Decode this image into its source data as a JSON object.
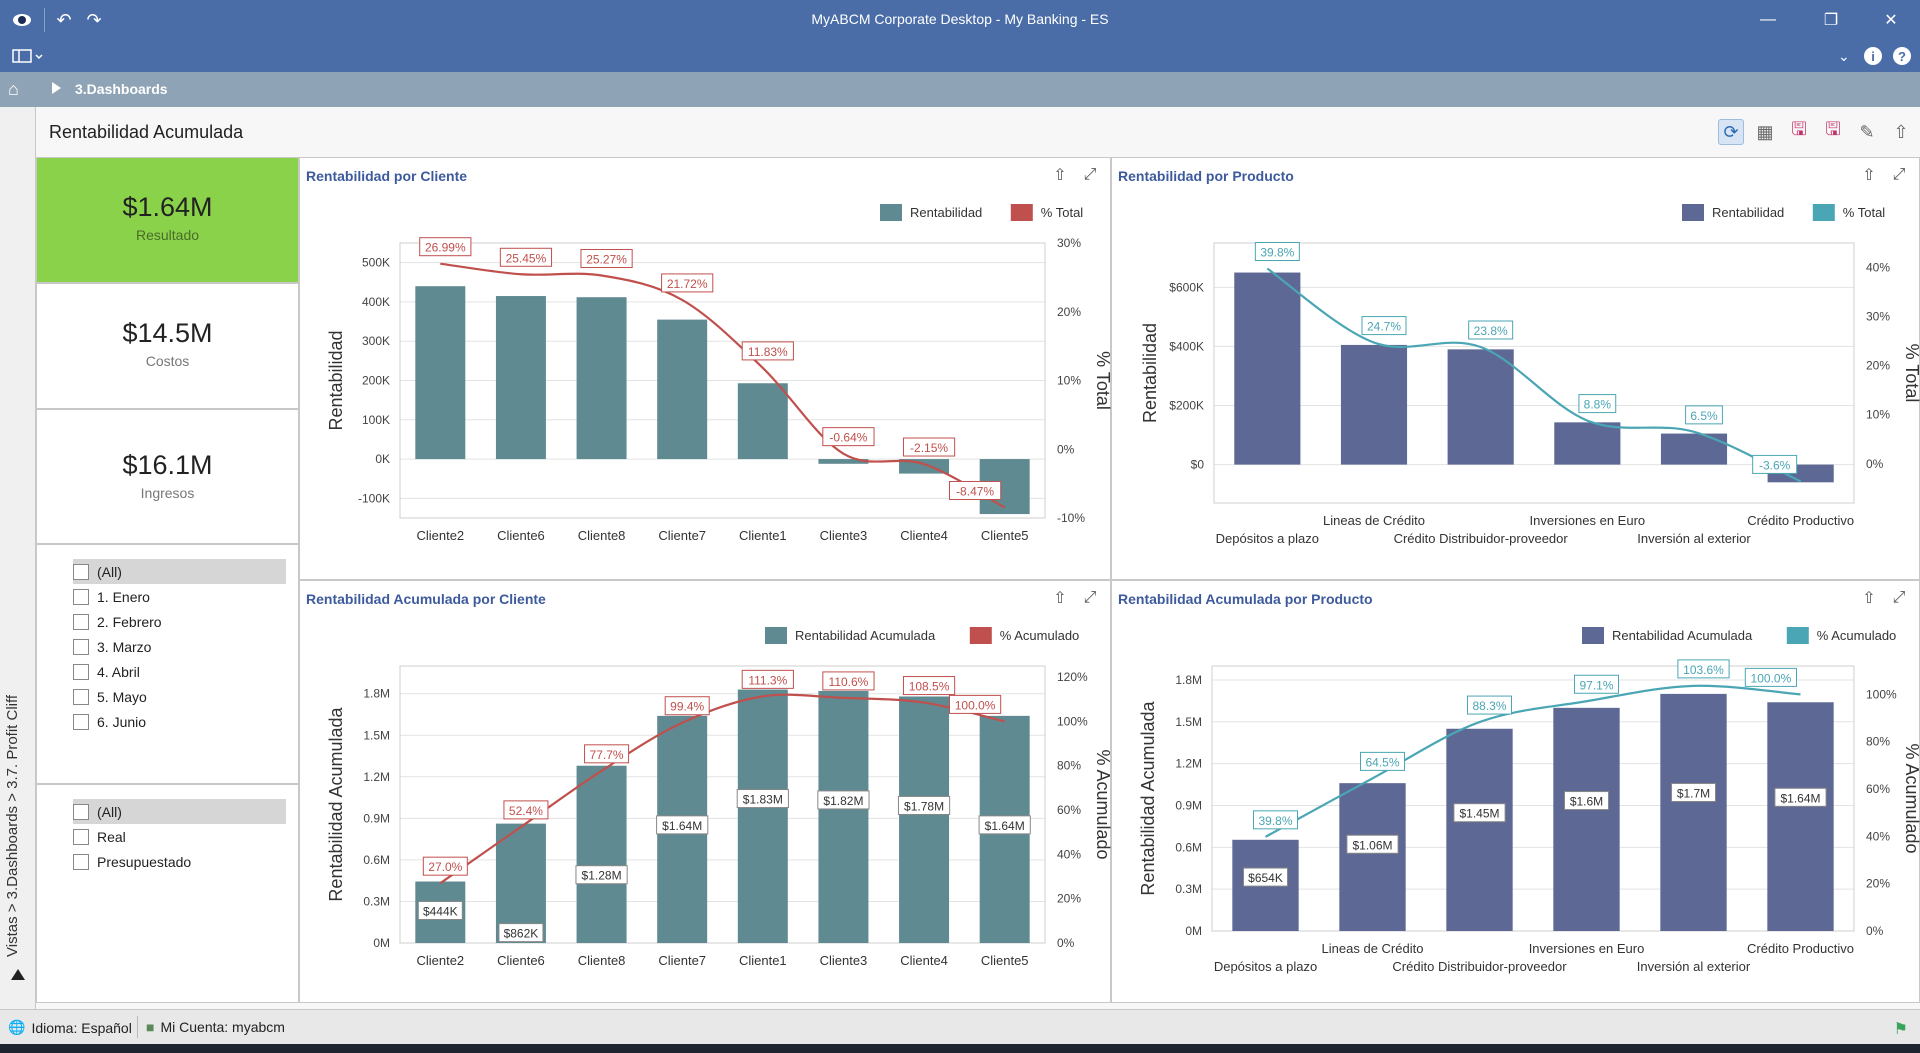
{
  "window": {
    "title": "MyABCM Corporate Desktop - My Banking - ES"
  },
  "breadcrumb": {
    "current": "3.Dashboards"
  },
  "sidebar_tab": {
    "label": "Vistas > 3.Dashboards > 3.7. Profit Cliff"
  },
  "dashboard": {
    "title": "Rentabilidad Acumulada"
  },
  "kpis": [
    {
      "value": "$1.64M",
      "label": "Resultado",
      "color": "#8bd24b"
    },
    {
      "value": "$14.5M",
      "label": "Costos"
    },
    {
      "value": "$16.1M",
      "label": "Ingresos"
    }
  ],
  "filters": {
    "months": [
      "(All)",
      "1. Enero",
      "2. Febrero",
      "3. Marzo",
      "4. Abril",
      "5. Mayo",
      "6. Junio"
    ],
    "scenarios": [
      "(All)",
      "Real",
      "Presupuestado"
    ]
  },
  "statusbar": {
    "language": "Idioma: Español",
    "account": "Mi Cuenta: myabcm"
  },
  "colors": {
    "title_bar": "#4a6da7",
    "teal_bar": "#5f8a91",
    "red_line": "#c0504d",
    "navy_bar": "#5e6894",
    "teal_line": "#4aa6b4"
  },
  "chart_data": [
    {
      "type": "bar",
      "title": "Rentabilidad por Cliente",
      "categories": [
        "Cliente2",
        "Cliente6",
        "Cliente8",
        "Cliente7",
        "Cliente1",
        "Cliente3",
        "Cliente4",
        "Cliente5"
      ],
      "series": [
        {
          "name": "Rentabilidad",
          "type": "bar",
          "axis": "left",
          "values": [
            440000,
            415000,
            412000,
            355000,
            193000,
            -12000,
            -37000,
            -140000
          ]
        },
        {
          "name": "% Total",
          "type": "line",
          "axis": "right",
          "values": [
            26.99,
            25.45,
            25.27,
            21.72,
            11.83,
            -0.64,
            -2.15,
            -8.47
          ],
          "labels": [
            "26.99%",
            "25.45%",
            "25.27%",
            "21.72%",
            "11.83%",
            "-0.64%",
            "-2.15%",
            "-8.47%"
          ]
        }
      ],
      "ylabel": "Rentabilidad",
      "y2label": "% Total",
      "ylim": [
        -150000,
        550000
      ],
      "y2lim": [
        -10,
        30
      ],
      "yticks": [
        "-100K",
        "0K",
        "100K",
        "200K",
        "300K",
        "400K",
        "500K"
      ],
      "y2ticks": [
        "-10%",
        "0%",
        "10%",
        "20%",
        "30%"
      ],
      "legend": "top-right"
    },
    {
      "type": "bar",
      "title": "Rentabilidad por Producto",
      "categories": [
        "Depósitos a plazo",
        "Lineas de Crédito",
        "Crédito Distribuidor-proveedor",
        "Inversiones en Euro",
        "Inversión al exterior",
        "Crédito Productivo"
      ],
      "series": [
        {
          "name": "Rentabilidad",
          "type": "bar",
          "axis": "left",
          "values": [
            650000,
            405000,
            390000,
            143000,
            105000,
            -60000
          ]
        },
        {
          "name": "% Total",
          "type": "line",
          "axis": "right",
          "values": [
            39.8,
            24.7,
            23.8,
            8.8,
            6.5,
            -3.6
          ],
          "labels": [
            "39.8%",
            "24.7%",
            "23.8%",
            "8.8%",
            "6.5%",
            "-3.6%"
          ]
        }
      ],
      "ylabel": "Rentabilidad",
      "y2label": "% Total",
      "ylim": [
        -130000,
        750000
      ],
      "y2lim": [
        -8,
        45
      ],
      "yticks": [
        "$0",
        "$200K",
        "$400K",
        "$600K"
      ],
      "y2ticks": [
        "0%",
        "10%",
        "20%",
        "30%",
        "40%"
      ],
      "legend": "top-right"
    },
    {
      "type": "bar",
      "title": "Rentabilidad Acumulada por Cliente",
      "categories": [
        "Cliente2",
        "Cliente6",
        "Cliente8",
        "Cliente7",
        "Cliente1",
        "Cliente3",
        "Cliente4",
        "Cliente5"
      ],
      "series": [
        {
          "name": "Rentabilidad Acumulada",
          "type": "bar",
          "axis": "left",
          "values": [
            444000,
            862000,
            1280000,
            1640000,
            1830000,
            1820000,
            1780000,
            1640000
          ],
          "labels": [
            "$444K",
            "$862K",
            "$1.28M",
            "$1.64M",
            "$1.83M",
            "$1.82M",
            "$1.78M",
            "$1.64M"
          ]
        },
        {
          "name": "% Acumulado",
          "type": "line",
          "axis": "right",
          "values": [
            27.0,
            52.4,
            77.7,
            99.4,
            111.3,
            110.6,
            108.5,
            100.0
          ],
          "labels": [
            "27.0%",
            "52.4%",
            "77.7%",
            "99.4%",
            "111.3%",
            "110.6%",
            "108.5%",
            "100.0%"
          ]
        }
      ],
      "ylabel": "Rentabilidad Acumulada",
      "y2label": "% Acumulado",
      "ylim": [
        0,
        2000000
      ],
      "y2lim": [
        0,
        125
      ],
      "yticks": [
        "0M",
        "0.3M",
        "0.6M",
        "0.9M",
        "1.2M",
        "1.5M",
        "1.8M"
      ],
      "y2ticks": [
        "0%",
        "20%",
        "40%",
        "60%",
        "80%",
        "100%",
        "120%"
      ],
      "legend": "top-right"
    },
    {
      "type": "bar",
      "title": "Rentabilidad Acumulada por Producto",
      "categories": [
        "Depósitos a plazo",
        "Lineas de Crédito",
        "Crédito Distribuidor-proveedor",
        "Inversiones en Euro",
        "Inversión al exterior",
        "Crédito Productivo"
      ],
      "series": [
        {
          "name": "Rentabilidad Acumulada",
          "type": "bar",
          "axis": "left",
          "values": [
            654000,
            1060000,
            1450000,
            1600000,
            1700000,
            1640000
          ],
          "labels": [
            "$654K",
            "$1.06M",
            "$1.45M",
            "$1.6M",
            "$1.7M",
            "$1.64M"
          ]
        },
        {
          "name": "% Acumulado",
          "type": "line",
          "axis": "right",
          "values": [
            39.8,
            64.5,
            88.3,
            97.1,
            103.6,
            100.0
          ],
          "labels": [
            "39.8%",
            "64.5%",
            "88.3%",
            "97.1%",
            "103.6%",
            "100.0%"
          ]
        }
      ],
      "ylabel": "Rentabilidad Acumulada",
      "y2label": "% Acumulado",
      "ylim": [
        0,
        1900000
      ],
      "y2lim": [
        0,
        112
      ],
      "yticks": [
        "0M",
        "0.3M",
        "0.6M",
        "0.9M",
        "1.2M",
        "1.5M",
        "1.8M"
      ],
      "y2ticks": [
        "0%",
        "20%",
        "40%",
        "60%",
        "80%",
        "100%"
      ],
      "legend": "top-right"
    }
  ]
}
